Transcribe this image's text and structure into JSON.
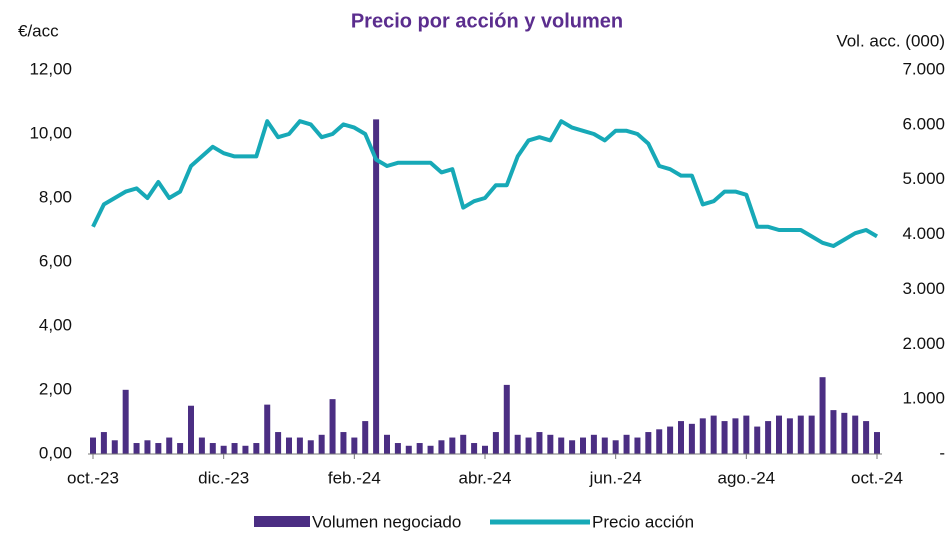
{
  "chart_data": {
    "type": "combo",
    "title": "Precio por acción y volumen",
    "y_label": "€/acc",
    "y2_label": "Vol. acc. (000)",
    "categories": [
      "oct.-23",
      null,
      null,
      null,
      null,
      null,
      null,
      null,
      null,
      null,
      null,
      null,
      "dic.-23",
      null,
      null,
      null,
      null,
      null,
      null,
      null,
      null,
      null,
      null,
      null,
      "feb.-24",
      null,
      null,
      null,
      null,
      null,
      null,
      null,
      null,
      null,
      null,
      null,
      "abr.-24",
      null,
      null,
      null,
      null,
      null,
      null,
      null,
      null,
      null,
      null,
      null,
      "jun.-24",
      null,
      null,
      null,
      null,
      null,
      null,
      null,
      null,
      null,
      null,
      null,
      "ago.-24",
      null,
      null,
      null,
      null,
      null,
      null,
      null,
      null,
      null,
      null,
      null,
      "oct.-24"
    ],
    "series": [
      {
        "name": "Volumen negociado",
        "type": "bar",
        "axis": "y2",
        "color": "#4b2e83",
        "values": [
          300,
          400,
          250,
          1170,
          200,
          250,
          200,
          300,
          200,
          880,
          300,
          200,
          150,
          200,
          150,
          200,
          900,
          400,
          300,
          300,
          250,
          350,
          1000,
          400,
          300,
          600,
          6100,
          350,
          200,
          150,
          200,
          150,
          250,
          300,
          350,
          200,
          150,
          400,
          1260,
          350,
          300,
          400,
          350,
          300,
          250,
          300,
          350,
          300,
          250,
          350,
          300,
          400,
          450,
          500,
          600,
          550,
          650,
          700,
          600,
          650,
          700,
          500,
          600,
          700,
          650,
          700,
          700,
          1400,
          800,
          750,
          700,
          600,
          400
        ]
      },
      {
        "name": "Precio acción",
        "type": "line",
        "color": "#17a9b7",
        "values": [
          7.1,
          7.8,
          8.0,
          8.2,
          8.3,
          8.0,
          8.5,
          8.0,
          8.2,
          9.0,
          9.3,
          9.6,
          9.4,
          9.3,
          9.3,
          9.3,
          10.4,
          9.9,
          10.0,
          10.4,
          10.3,
          9.9,
          10.0,
          10.3,
          10.2,
          10.0,
          9.2,
          9.0,
          9.1,
          9.1,
          9.1,
          9.1,
          8.8,
          8.9,
          7.7,
          7.9,
          8.0,
          8.4,
          8.4,
          9.3,
          9.8,
          9.9,
          9.8,
          10.4,
          10.2,
          10.1,
          10.0,
          9.8,
          10.1,
          10.1,
          10.0,
          9.7,
          9.0,
          8.9,
          8.7,
          8.7,
          7.8,
          7.9,
          8.2,
          8.2,
          8.1,
          7.1,
          7.1,
          7.0,
          7.0,
          7.0,
          6.8,
          6.6,
          6.5,
          6.7,
          6.9,
          7.0,
          6.8
        ]
      }
    ],
    "ylim": [
      0,
      12
    ],
    "yticks": [
      {
        "value": 0,
        "label": "0,00"
      },
      {
        "value": 2,
        "label": "2,00"
      },
      {
        "value": 4,
        "label": "4,00"
      },
      {
        "value": 6,
        "label": "6,00"
      },
      {
        "value": 8,
        "label": "8,00"
      },
      {
        "value": 10,
        "label": "10,00"
      },
      {
        "value": 12,
        "label": "12,00"
      }
    ],
    "y2lim": [
      0,
      7000
    ],
    "y2ticks": [
      {
        "value": 0,
        "label": "-"
      },
      {
        "value": 1000,
        "label": "1.000"
      },
      {
        "value": 2000,
        "label": "2.000"
      },
      {
        "value": 3000,
        "label": "3.000"
      },
      {
        "value": 4000,
        "label": "4.000"
      },
      {
        "value": 5000,
        "label": "5.000"
      },
      {
        "value": 6000,
        "label": "6.000"
      },
      {
        "value": 7000,
        "label": "7.000"
      }
    ],
    "legend": "bottom"
  }
}
